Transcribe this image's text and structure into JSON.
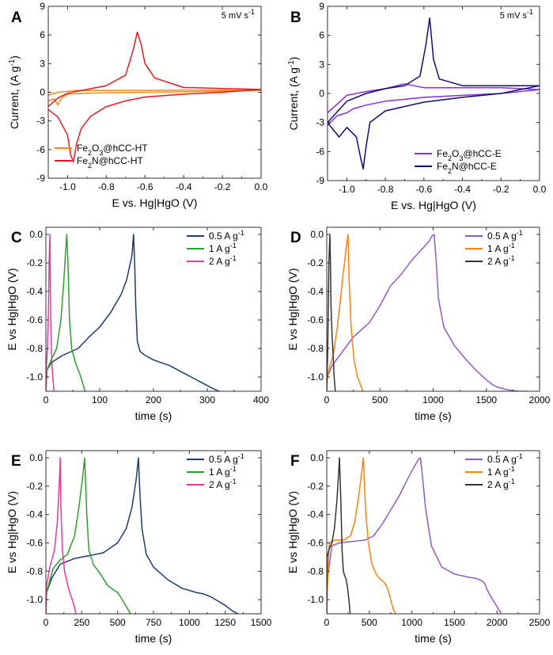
{
  "chart_data": [
    {
      "id": "A",
      "type": "line",
      "title": "",
      "xlabel": "E vs. Hg|HgO (V)",
      "ylabel": "Current, (A g-1)",
      "xlim": [
        -1.1,
        0.0
      ],
      "ylim": [
        -9,
        9
      ],
      "xticks": [
        -1.0,
        -0.8,
        -0.6,
        -0.4,
        -0.2,
        0.0
      ],
      "xtick_labels": [
        "-1.0",
        "-0.8",
        "-0.6",
        "-0.4",
        "-0.2",
        "0.0"
      ],
      "yticks": [
        -9,
        -6,
        -3,
        0,
        3,
        6,
        9
      ],
      "ytick_labels": [
        "-9",
        "-6",
        "-3",
        "0",
        "3",
        "6",
        "9"
      ],
      "annotation": "5 mV s-1",
      "legend_position": "bottom-left",
      "series": [
        {
          "name": "Fe2O3@hCC-HT",
          "color": "#f28c1c",
          "x": [
            -1.1,
            -1.07,
            -1.05,
            -1.03,
            -1.0,
            -0.9,
            -0.8,
            -0.6,
            -0.4,
            -0.2,
            0.0,
            -0.2,
            -0.4,
            -0.6,
            -0.8,
            -0.95,
            -1.05,
            -1.1
          ],
          "y": [
            -0.9,
            -0.7,
            -1.3,
            -0.6,
            -0.2,
            -0.1,
            -0.05,
            0.0,
            0.05,
            0.1,
            0.2,
            0.22,
            0.22,
            0.2,
            0.2,
            0.2,
            0.0,
            -0.3
          ]
        },
        {
          "name": "Fe2N@hCC-HT",
          "color": "#e31a1c",
          "x": [
            -1.1,
            -1.05,
            -1.0,
            -0.985,
            -0.97,
            -0.955,
            -0.93,
            -0.88,
            -0.8,
            -0.7,
            -0.6,
            -0.4,
            -0.2,
            0.0,
            -0.2,
            -0.4,
            -0.55,
            -0.6,
            -0.62,
            -0.64,
            -0.66,
            -0.7,
            -0.8,
            -0.9,
            -1.0,
            -1.05,
            -1.1
          ],
          "y": [
            -1.8,
            -2.6,
            -4.5,
            -6.5,
            -7.3,
            -5.5,
            -3.8,
            -2.5,
            -1.5,
            -0.9,
            -0.5,
            -0.2,
            0.0,
            0.3,
            0.4,
            0.5,
            1.5,
            3.0,
            5.0,
            6.3,
            4.5,
            1.8,
            0.7,
            0.3,
            -0.1,
            -0.6,
            -1.5
          ]
        }
      ]
    },
    {
      "id": "B",
      "type": "line",
      "title": "",
      "xlabel": "E vs. Hg|HgO (V)",
      "ylabel": "Current, (A g-1)",
      "xlim": [
        -1.1,
        0.0
      ],
      "ylim": [
        -9,
        9
      ],
      "xticks": [
        -1.0,
        -0.8,
        -0.6,
        -0.4,
        -0.2,
        0.0
      ],
      "xtick_labels": [
        "-1.0",
        "-0.8",
        "-0.6",
        "-0.4",
        "-0.2",
        "0.0"
      ],
      "yticks": [
        -9,
        -6,
        -3,
        0,
        3,
        6,
        9
      ],
      "ytick_labels": [
        "-9",
        "-6",
        "-3",
        "0",
        "3",
        "6",
        "9"
      ],
      "annotation": "5 mV s-1",
      "legend_position": "bottom-right",
      "series": [
        {
          "name": "Fe2O3@hCC-E",
          "color": "#8a2be2",
          "x": [
            -1.1,
            -1.05,
            -1.0,
            -0.97,
            -0.9,
            -0.8,
            -0.6,
            -0.4,
            -0.2,
            0.0,
            -0.2,
            -0.4,
            -0.6,
            -0.7,
            -0.8,
            -0.9,
            -1.0,
            -1.1
          ],
          "y": [
            -3.3,
            -2.3,
            -2.0,
            -1.6,
            -1.2,
            -0.8,
            -0.4,
            -0.2,
            0.0,
            0.4,
            0.6,
            0.6,
            0.6,
            1.0,
            0.5,
            0.2,
            -0.2,
            -2.0
          ]
        },
        {
          "name": "Fe2N@hCC-E",
          "color": "#0d0d73",
          "x": [
            -1.1,
            -1.06,
            -1.04,
            -1.0,
            -0.95,
            -0.93,
            -0.915,
            -0.9,
            -0.88,
            -0.8,
            -0.6,
            -0.4,
            -0.2,
            0.0,
            -0.2,
            -0.4,
            -0.52,
            -0.55,
            -0.57,
            -0.59,
            -0.62,
            -0.7,
            -0.8,
            -0.9,
            -1.0,
            -1.1
          ],
          "y": [
            -3.0,
            -4.0,
            -4.5,
            -3.5,
            -4.5,
            -6.5,
            -7.8,
            -5.5,
            -3.0,
            -1.8,
            -0.9,
            -0.4,
            0.0,
            0.8,
            0.8,
            0.8,
            1.5,
            3.5,
            7.8,
            5.0,
            1.8,
            0.8,
            0.5,
            0.0,
            -0.8,
            -3.0
          ]
        }
      ]
    },
    {
      "id": "C",
      "type": "line",
      "title": "",
      "xlabel": "time (s)",
      "ylabel": "E vs Hg|HgO (V)",
      "xlim": [
        0,
        400
      ],
      "ylim": [
        -1.1,
        0.05
      ],
      "xticks": [
        0,
        100,
        200,
        300,
        400
      ],
      "xtick_labels": [
        "0",
        "100",
        "200",
        "300",
        "400"
      ],
      "yticks": [
        0.0,
        -0.2,
        -0.4,
        -0.6,
        -0.8,
        -1.0
      ],
      "ytick_labels": [
        "0.0",
        "-0.2",
        "-0.4",
        "-0.6",
        "-0.8",
        "-1.0"
      ],
      "legend_position": "top-right",
      "series": [
        {
          "name": "0.5 A g-1",
          "color": "#1f3a6e",
          "x": [
            0,
            2,
            10,
            30,
            60,
            80,
            100,
            120,
            140,
            150,
            160,
            163,
            165,
            167,
            170,
            175,
            185,
            200,
            230,
            250,
            270,
            290,
            300,
            310,
            322
          ],
          "y": [
            -1.1,
            -0.95,
            -0.9,
            -0.85,
            -0.8,
            -0.72,
            -0.65,
            -0.55,
            -0.42,
            -0.32,
            -0.15,
            0.0,
            -0.2,
            -0.5,
            -0.75,
            -0.82,
            -0.85,
            -0.88,
            -0.92,
            -0.96,
            -1.0,
            -1.04,
            -1.06,
            -1.08,
            -1.1
          ]
        },
        {
          "name": "1 A g-1",
          "color": "#2ca02c",
          "x": [
            0,
            2,
            10,
            20,
            28,
            33,
            37,
            39,
            41,
            44,
            48,
            55,
            65,
            73
          ],
          "y": [
            -1.1,
            -0.95,
            -0.88,
            -0.8,
            -0.6,
            -0.35,
            -0.1,
            0.0,
            -0.2,
            -0.6,
            -0.8,
            -0.9,
            -1.0,
            -1.1
          ],
          "cap_bottom": true
        },
        {
          "name": "2 A g-1",
          "color": "#e8389a",
          "x": [
            0,
            1,
            3,
            5,
            6,
            7,
            7.5,
            8,
            9,
            11,
            13,
            15
          ],
          "y": [
            -1.1,
            -0.92,
            -0.8,
            -0.5,
            -0.2,
            -0.05,
            0.0,
            -0.2,
            -0.6,
            -0.9,
            -1.0,
            -1.1
          ]
        }
      ]
    },
    {
      "id": "D",
      "type": "line",
      "title": "",
      "xlabel": "time (s)",
      "ylabel": "E vs Hg|HgO (V)",
      "xlim": [
        0,
        2000
      ],
      "ylim": [
        -1.1,
        0.05
      ],
      "xticks": [
        0,
        500,
        1000,
        1500,
        2000
      ],
      "xtick_labels": [
        "0",
        "500",
        "1000",
        "1500",
        "2000"
      ],
      "yticks": [
        0.0,
        -0.2,
        -0.4,
        -0.6,
        -0.8,
        -1.0
      ],
      "ytick_labels": [
        "0.0",
        "-0.2",
        "-0.4",
        "-0.6",
        "-0.8",
        "-1.0"
      ],
      "legend_position": "top-right",
      "series": [
        {
          "name": "0.5 A g-1",
          "color": "#8a5cc8",
          "x": [
            0,
            5,
            50,
            150,
            250,
            400,
            500,
            600,
            700,
            800,
            900,
            960,
            990,
            1010,
            1030,
            1050,
            1100,
            1200,
            1300,
            1400,
            1500,
            1550,
            1600,
            1700,
            1800,
            1880
          ],
          "y": [
            -1.1,
            -1.0,
            -0.92,
            -0.82,
            -0.72,
            -0.62,
            -0.5,
            -0.36,
            -0.28,
            -0.18,
            -0.1,
            -0.05,
            -0.01,
            0.0,
            -0.2,
            -0.45,
            -0.65,
            -0.78,
            -0.87,
            -0.95,
            -1.02,
            -1.05,
            -1.07,
            -1.09,
            -1.1,
            -1.1
          ]
        },
        {
          "name": "1 A g-1",
          "color": "#ff7f0e",
          "x": [
            0,
            5,
            30,
            60,
            100,
            130,
            150,
            170,
            185,
            195,
            200,
            210,
            225,
            240,
            260,
            290,
            320,
            340
          ],
          "y": [
            -1.1,
            -1.0,
            -0.92,
            -0.85,
            -0.65,
            -0.45,
            -0.3,
            -0.18,
            -0.08,
            -0.02,
            0.0,
            -0.3,
            -0.6,
            -0.75,
            -0.9,
            -1.0,
            -1.06,
            -1.1
          ]
        },
        {
          "name": "2 A g-1",
          "color": "#333333",
          "x": [
            0,
            3,
            10,
            15,
            20,
            30,
            35,
            40,
            50,
            60,
            70,
            80
          ],
          "y": [
            -1.1,
            -1.0,
            -0.8,
            -0.5,
            -0.2,
            0.0,
            -0.2,
            -0.5,
            -0.7,
            -0.85,
            -1.0,
            -1.1
          ]
        }
      ]
    },
    {
      "id": "E",
      "type": "line",
      "title": "",
      "xlabel": "time (s)",
      "ylabel": "E vs Hg|HgO (V)",
      "xlim": [
        0,
        1500
      ],
      "ylim": [
        -1.1,
        0.05
      ],
      "xticks": [
        0,
        250,
        500,
        750,
        1000,
        1250,
        1500
      ],
      "xtick_labels": [
        "0",
        "250",
        "500",
        "750",
        "1000",
        "1250",
        "1500"
      ],
      "yticks": [
        0.0,
        -0.2,
        -0.4,
        -0.6,
        -0.8,
        -1.0
      ],
      "ytick_labels": [
        "0.0",
        "-0.2",
        "-0.4",
        "-0.6",
        "-0.8",
        "-1.0"
      ],
      "legend_position": "top-right",
      "series": [
        {
          "name": "0.5 A g-1",
          "color": "#1f3a6e",
          "x": [
            0,
            5,
            40,
            100,
            200,
            300,
            400,
            500,
            560,
            600,
            630,
            645,
            655,
            670,
            700,
            750,
            850,
            950,
            1050,
            1100,
            1150,
            1200,
            1250,
            1300,
            1340
          ],
          "y": [
            -1.1,
            -0.95,
            -0.85,
            -0.75,
            -0.71,
            -0.69,
            -0.67,
            -0.6,
            -0.5,
            -0.35,
            -0.15,
            0.0,
            -0.25,
            -0.5,
            -0.68,
            -0.77,
            -0.86,
            -0.92,
            -0.95,
            -0.96,
            -0.98,
            -1.01,
            -1.04,
            -1.08,
            -1.1
          ]
        },
        {
          "name": "1 A g-1",
          "color": "#2ca02c",
          "x": [
            0,
            5,
            50,
            100,
            150,
            200,
            230,
            255,
            270,
            285,
            300,
            330,
            380,
            430,
            470,
            500,
            520,
            550,
            590
          ],
          "y": [
            -1.1,
            -0.95,
            -0.78,
            -0.72,
            -0.68,
            -0.55,
            -0.35,
            -0.15,
            0.0,
            -0.4,
            -0.65,
            -0.75,
            -0.82,
            -0.9,
            -0.93,
            -0.95,
            -0.98,
            -1.03,
            -1.1
          ]
        },
        {
          "name": "2 A g-1",
          "color": "#e8389a",
          "x": [
            0,
            5,
            30,
            60,
            80,
            95,
            100,
            105,
            115,
            130,
            160,
            190,
            210
          ],
          "y": [
            -1.1,
            -0.9,
            -0.76,
            -0.65,
            -0.45,
            -0.15,
            0.0,
            -0.35,
            -0.65,
            -0.8,
            -0.93,
            -1.02,
            -1.1
          ]
        }
      ]
    },
    {
      "id": "F",
      "type": "line",
      "title": "",
      "xlabel": "time (s)",
      "ylabel": "E vs Hg|HgO (V)",
      "xlim": [
        0,
        2500
      ],
      "ylim": [
        -1.1,
        0.05
      ],
      "xticks": [
        0,
        500,
        1000,
        1500,
        2000,
        2500
      ],
      "xtick_labels": [
        "0",
        "500",
        "1000",
        "1500",
        "2000",
        "2500"
      ],
      "yticks": [
        0.0,
        -0.2,
        -0.4,
        -0.6,
        -0.8,
        -1.0
      ],
      "ytick_labels": [
        "0.0",
        "-0.2",
        "-0.4",
        "-0.6",
        "-0.8",
        "-1.0"
      ],
      "legend_position": "top-right",
      "series": [
        {
          "name": "0.5 A g-1",
          "color": "#8a5cc8",
          "x": [
            0,
            10,
            60,
            150,
            300,
            450,
            550,
            650,
            750,
            850,
            950,
            1030,
            1080,
            1100,
            1120,
            1160,
            1230,
            1350,
            1500,
            1650,
            1750,
            1800,
            1850,
            1900,
            1950,
            2000,
            2050
          ],
          "y": [
            -1.1,
            -0.85,
            -0.62,
            -0.6,
            -0.59,
            -0.58,
            -0.55,
            -0.47,
            -0.37,
            -0.27,
            -0.15,
            -0.06,
            -0.01,
            0.0,
            -0.1,
            -0.35,
            -0.62,
            -0.77,
            -0.82,
            -0.84,
            -0.85,
            -0.86,
            -0.88,
            -0.95,
            -1.0,
            -1.05,
            -1.1
          ]
        },
        {
          "name": "1 A g-1",
          "color": "#ff7f0e",
          "x": [
            0,
            5,
            30,
            100,
            200,
            280,
            330,
            380,
            415,
            430,
            440,
            460,
            490,
            530,
            580,
            620,
            660,
            700,
            730,
            760,
            790,
            810
          ],
          "y": [
            -1.1,
            -0.95,
            -0.6,
            -0.58,
            -0.58,
            -0.55,
            -0.45,
            -0.25,
            -0.08,
            0.0,
            -0.15,
            -0.4,
            -0.6,
            -0.75,
            -0.82,
            -0.85,
            -0.87,
            -0.9,
            -0.95,
            -1.02,
            -1.08,
            -1.1
          ]
        },
        {
          "name": "2 A g-1",
          "color": "#333333",
          "x": [
            0,
            5,
            30,
            60,
            90,
            120,
            140,
            150,
            165,
            180,
            195,
            210,
            230,
            245,
            260,
            275
          ],
          "y": [
            -1.1,
            -0.7,
            -0.64,
            -0.6,
            -0.5,
            -0.3,
            -0.1,
            0.0,
            -0.3,
            -0.65,
            -0.8,
            -0.83,
            -0.86,
            -0.92,
            -1.0,
            -1.1
          ]
        }
      ]
    }
  ]
}
